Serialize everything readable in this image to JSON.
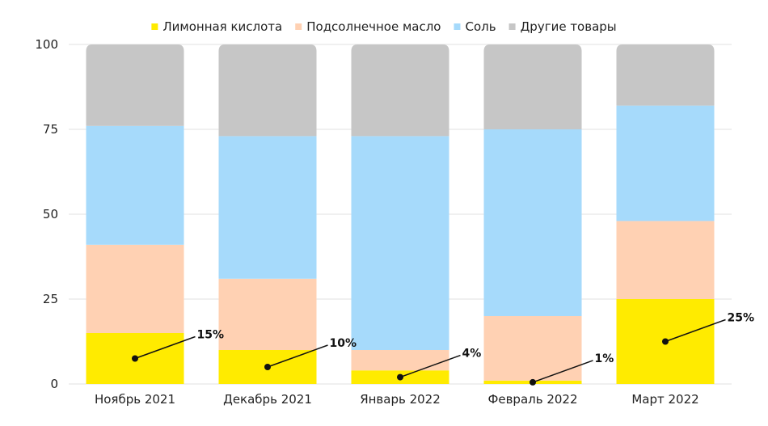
{
  "chart_data": {
    "type": "bar",
    "stacked": true,
    "categories": [
      "Ноябрь 2021",
      "Декабрь 2021",
      "Январь 2022",
      "Февраль 2022",
      "Март 2022"
    ],
    "series": [
      {
        "name": "Лимонная кислота",
        "color": "#FFEB00",
        "values": [
          15,
          10,
          4,
          1,
          25
        ]
      },
      {
        "name": "Подсолнечное масло",
        "color": "#FFD1B3",
        "values": [
          26,
          21,
          6,
          19,
          23
        ]
      },
      {
        "name": "Соль",
        "color": "#A6DAFB",
        "values": [
          35,
          42,
          63,
          55,
          34
        ]
      },
      {
        "name": "Другие товары",
        "color": "#C6C6C6",
        "values": [
          24,
          27,
          27,
          25,
          18
        ]
      }
    ],
    "annotations": [
      "15%",
      "10%",
      "4%",
      "1%",
      "25%"
    ],
    "ylim": [
      0,
      100
    ],
    "yticks": [
      0,
      25,
      50,
      75,
      100
    ],
    "grid": true,
    "legend": "top-center"
  }
}
